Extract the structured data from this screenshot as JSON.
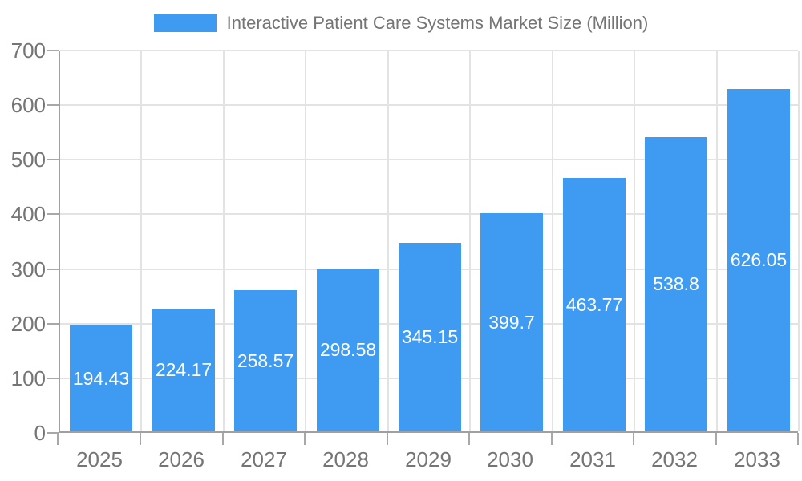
{
  "chart_data": {
    "type": "bar",
    "title": "Interactive Patient Care Systems Market Size (Million)",
    "categories": [
      "2025",
      "2026",
      "2027",
      "2028",
      "2029",
      "2030",
      "2031",
      "2032",
      "2033"
    ],
    "values": [
      194.43,
      224.17,
      258.57,
      298.58,
      345.15,
      399.7,
      463.77,
      538.8,
      626.05
    ],
    "value_labels": [
      "194.43",
      "224.17",
      "258.57",
      "298.58",
      "345.15",
      "399.7",
      "463.77",
      "538.8",
      "626.05"
    ],
    "xlabel": "",
    "ylabel": "",
    "ylim": [
      0,
      700
    ],
    "ytick_interval": 100,
    "yticks": [
      0,
      100,
      200,
      300,
      400,
      500,
      600,
      700
    ],
    "grid": true,
    "legend_position": "top-center",
    "colors": {
      "bar": "#3E9BF1",
      "axis": "#a0a0a0",
      "grid": "#e3e3e3",
      "tick": "#a8a8a8",
      "axis_text": "#757575",
      "legend_text": "#757575",
      "value_text": "#ffffff",
      "background": "#ffffff"
    }
  }
}
